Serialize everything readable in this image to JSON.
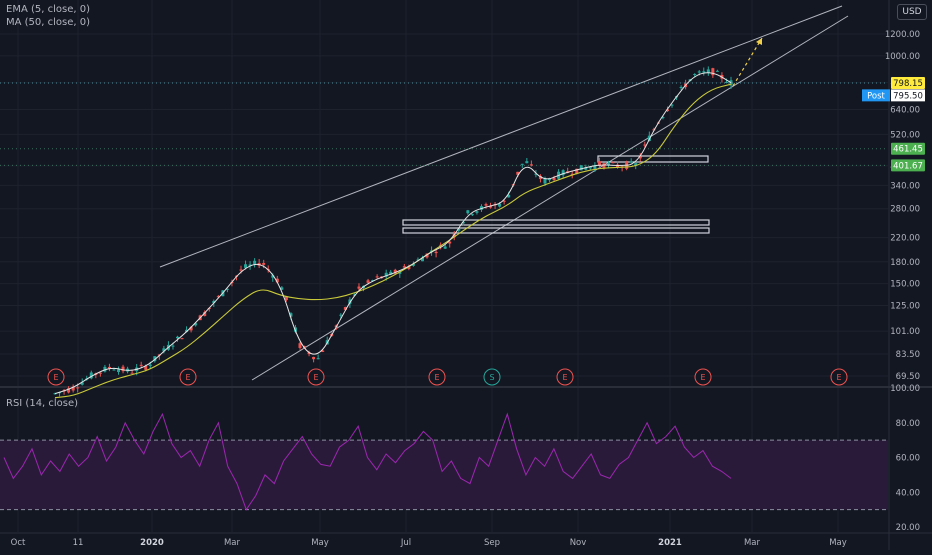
{
  "indicators": {
    "ema_label": "EMA (5, close, 0)",
    "ma_label": "MA (50, close, 0)",
    "rsi_label": "RSI (14, close)"
  },
  "currency": "USD",
  "colors": {
    "background": "#131722",
    "grid": "#1e222d",
    "up_candle": "#26a69a",
    "down_candle": "#ef5350",
    "ema": "#e6e6e6",
    "ma": "#c9c93a",
    "rsi_line": "#9c27b0",
    "rsi_band": "#2a1a3a",
    "last_price_bg": "#ffeb3b",
    "post_bg": "#2196f3",
    "level_bg": "#4caf50",
    "trendline": "#b2b5be",
    "projection": "#f0d04a",
    "earnings": "#ef5350",
    "split": "#26a69a"
  },
  "chart_data": [
    {
      "type": "candlestick",
      "scale": "log",
      "y_ticks": [
        "1200.00",
        "1000.00",
        "800.00",
        "640.00",
        "520.00",
        "400.00",
        "340.00",
        "280.00",
        "220.00",
        "180.00",
        "150.00",
        "125.00",
        "101.00",
        "83.50",
        "69.50"
      ],
      "x_ticks": [
        "Oct",
        "11",
        "2020",
        "Mar",
        "May",
        "Jul",
        "Sep",
        "Nov",
        "2021",
        "Mar",
        "May"
      ],
      "last_price": "798.15",
      "post_label": "Post",
      "post_price": "795.50",
      "price_levels": [
        "461.45",
        "401.67"
      ],
      "event_markers": [
        "E",
        "E",
        "E",
        "E",
        "S",
        "E",
        "E",
        "E"
      ],
      "series": [
        {
          "name": "EMA (5, close, 0)",
          "values": [
            60,
            63,
            70,
            75,
            72,
            76,
            88,
            100,
            118,
            140,
            170,
            180,
            150,
            90,
            80,
            105,
            140,
            155,
            163,
            175,
            195,
            210,
            270,
            285,
            295,
            420,
            350,
            375,
            390,
            405,
            400,
            405,
            560,
            700,
            850,
            880,
            800
          ]
        },
        {
          "name": "MA (50, close, 0)",
          "values": [
            58,
            59,
            63,
            67,
            70,
            73,
            80,
            88,
            100,
            115,
            132,
            145,
            136,
            132,
            131,
            133,
            139,
            148,
            160,
            175,
            195,
            215,
            240,
            265,
            285,
            320,
            340,
            360,
            380,
            392,
            395,
            398,
            440,
            560,
            680,
            760,
            790
          ]
        }
      ]
    },
    {
      "type": "line",
      "name": "RSI (14, close)",
      "y_ticks": [
        "100.00",
        "80.00",
        "60.00",
        "40.00",
        "20.00"
      ],
      "ylim": [
        20,
        100
      ],
      "bands": [
        30,
        70
      ],
      "values": [
        60,
        48,
        55,
        65,
        50,
        58,
        52,
        62,
        55,
        60,
        72,
        58,
        66,
        80,
        70,
        62,
        75,
        85,
        68,
        60,
        64,
        55,
        70,
        80,
        55,
        45,
        30,
        38,
        50,
        45,
        58,
        65,
        72,
        62,
        56,
        55,
        66,
        70,
        78,
        60,
        53,
        62,
        57,
        64,
        68,
        75,
        70,
        52,
        58,
        48,
        45,
        60,
        55,
        70,
        85,
        65,
        50,
        60,
        55,
        65,
        52,
        48,
        55,
        62,
        50,
        48,
        56,
        60,
        70,
        80,
        68,
        72,
        78,
        66,
        60,
        64,
        55,
        52,
        48
      ]
    }
  ]
}
